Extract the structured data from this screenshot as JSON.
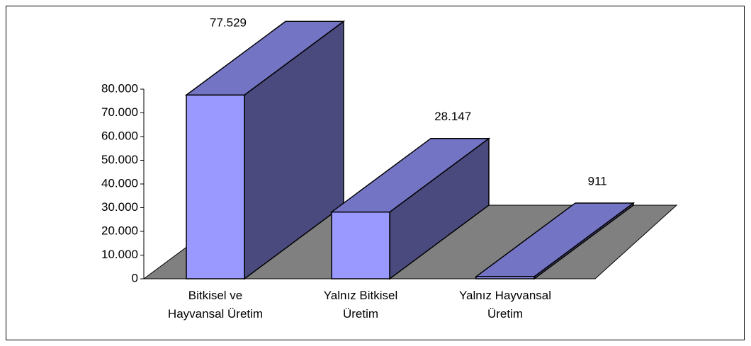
{
  "chart_data": {
    "type": "bar3d",
    "categories": [
      "Bitkisel ve Hayvansal Üretim",
      "Yalnız Bitkisel Üretim",
      "Yalnız Hayvansal Üretim"
    ],
    "values": [
      77529,
      28147,
      911
    ],
    "value_labels": [
      "77.529",
      "28.147",
      "911"
    ],
    "colors": {
      "front": "#9999ff",
      "top": "#7474c4",
      "side": "#4a4a7e",
      "floor": "#808080"
    },
    "ylim": [
      0,
      80000
    ],
    "yticks": [
      0,
      {
        "value": 10000,
        "label": "10.000"
      },
      {
        "value": 20000,
        "label": "20.000"
      },
      {
        "value": 30000,
        "label": "30.000"
      },
      {
        "value": 40000,
        "label": "40.000"
      },
      {
        "value": 50000,
        "label": "50.000"
      },
      {
        "value": 60000,
        "label": "60.000"
      },
      {
        "value": 70000,
        "label": "70.000"
      },
      {
        "value": 80000,
        "label": "80.000"
      }
    ]
  }
}
